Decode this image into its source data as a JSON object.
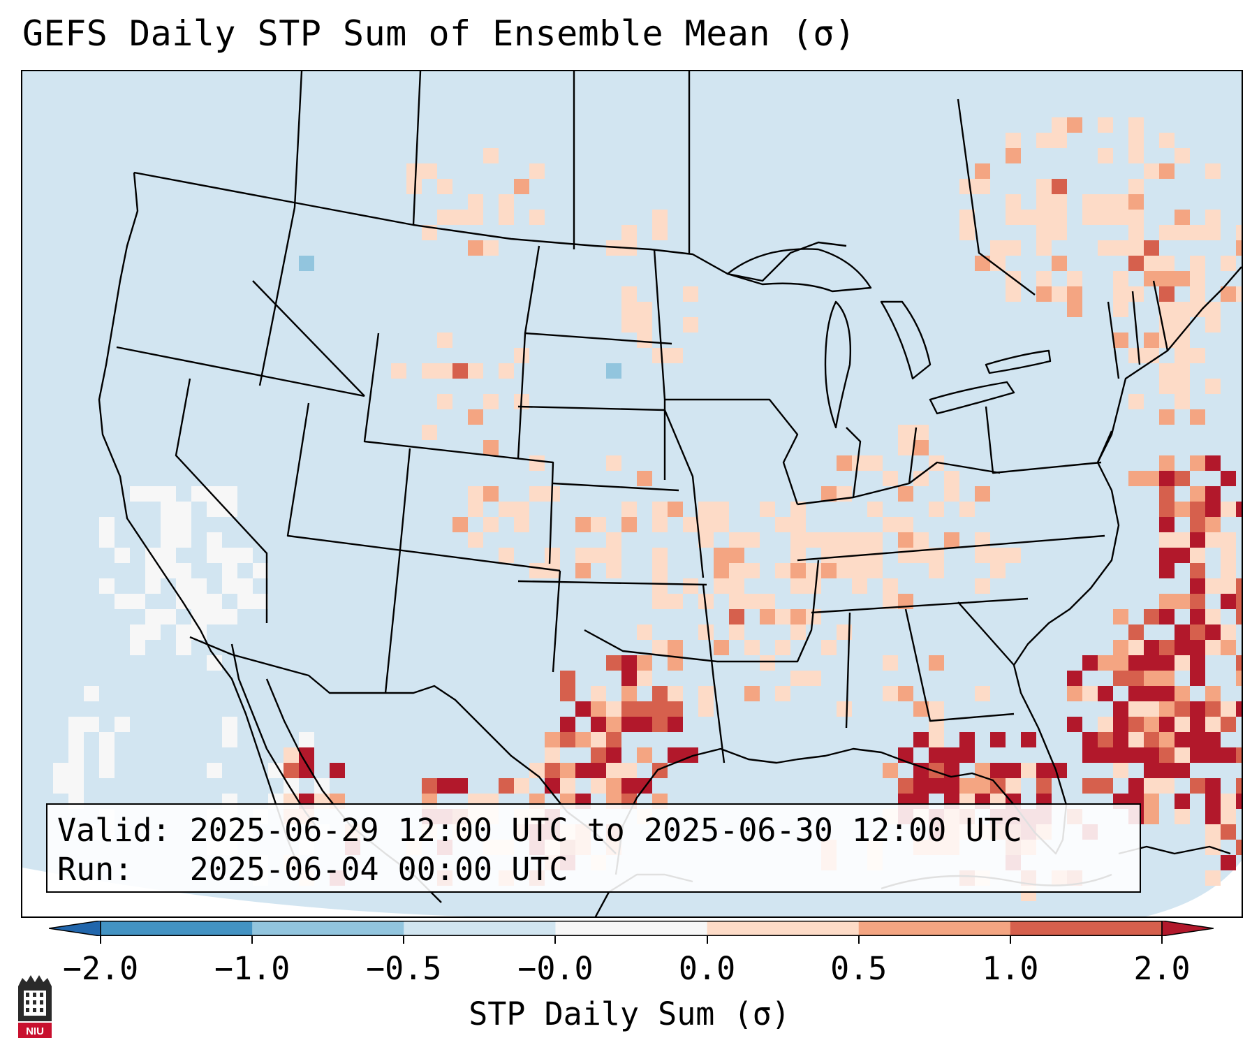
{
  "title": "GEFS Daily STP Sum of Ensemble Mean (σ)",
  "info": {
    "valid_label": "Valid:",
    "valid_value": "2025-06-29 12:00 UTC to 2025-06-30 12:00 UTC",
    "run_label": "Run:",
    "run_value": "2025-06-04 00:00 UTC"
  },
  "colorbar": {
    "label": "STP Daily Sum (σ)",
    "ticks": [
      "−2.0",
      "−1.0",
      "−0.5",
      "−0.0",
      "0.0",
      "0.5",
      "1.0",
      "2.0"
    ],
    "bins": [
      {
        "range": "< -2.0",
        "color": "#2166ac"
      },
      {
        "range": "-2.0 to -1.0",
        "color": "#4393c3"
      },
      {
        "range": "-1.0 to -0.5",
        "color": "#92c5de"
      },
      {
        "range": "-0.5 to -0.0",
        "color": "#d1e5f0"
      },
      {
        "range": "-0.0 to 0.0",
        "color": "#f7f7f7"
      },
      {
        "range": "0.0 to 0.5",
        "color": "#fddbc7"
      },
      {
        "range": "0.5 to 1.0",
        "color": "#f4a582"
      },
      {
        "range": "1.0 to 2.0",
        "color": "#d6604d"
      },
      {
        "range": "> 2.0",
        "color": "#b2182b"
      }
    ]
  },
  "logo": {
    "text": "NIU"
  },
  "map": {
    "region": "Continental United States and adjacent Canada, Mexico, Gulf of Mexico, western Atlantic",
    "background_color": "#d2e5f1",
    "highlights": [
      "Strongest values (> 2.0σ) over central Texas, Gulf coast of Florida, western Atlantic off the Carolinas and Georgia, and northern Mexico",
      "Weak positive values (0.0 to 0.5σ) scattered across the Plains, Midwest, Ohio Valley and southeastern Canada",
      "Near-zero (white) region over the eastern Pacific off Baja California"
    ]
  }
}
